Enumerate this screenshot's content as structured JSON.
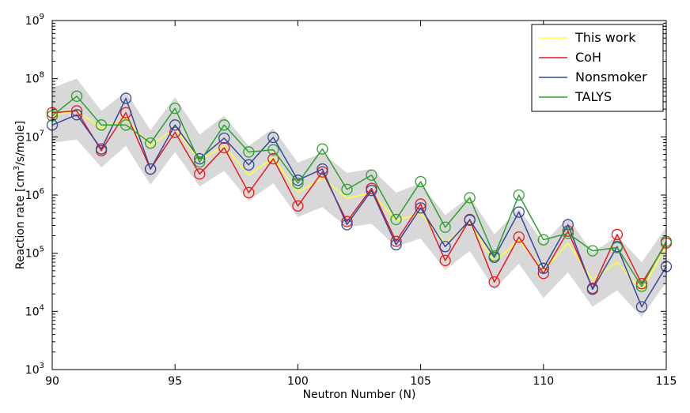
{
  "chart_data": {
    "type": "line",
    "title": "",
    "xlabel": "Neutron Number (N)",
    "ylabel_main": "Reaction rate [cm",
    "ylabel_sup": "3",
    "ylabel_tail": "/s/mole]",
    "xlim": [
      90,
      115
    ],
    "ylim_exp": [
      3,
      9
    ],
    "yscale": "log",
    "x_ticks": [
      90,
      95,
      100,
      105,
      110,
      115
    ],
    "y_tick_base": "10",
    "y_tick_exponents": [
      "3",
      "4",
      "5",
      "6",
      "7",
      "8",
      "9"
    ],
    "x": [
      90,
      91,
      92,
      93,
      94,
      95,
      96,
      97,
      98,
      99,
      100,
      101,
      102,
      103,
      104,
      105,
      106,
      107,
      108,
      109,
      110,
      111,
      112,
      113,
      114,
      115
    ],
    "band": {
      "color": "#d8d8d8",
      "lower": [
        8000000.0,
        9000000.0,
        3000000.0,
        7000000.0,
        1500000.0,
        5500000.0,
        1400000.0,
        2600000.0,
        800000.0,
        1600000.0,
        420000.0,
        620000.0,
        280000.0,
        320000.0,
        130000.0,
        180000.0,
        52000.0,
        110000.0,
        24000.0,
        66000.0,
        17000.0,
        47000.0,
        12000.0,
        23000.0,
        8000.0,
        32000.0
      ],
      "upper": [
        70000000.0,
        100000000.0,
        28000000.0,
        60000000.0,
        13000000.0,
        48000000.0,
        11000000.0,
        23000000.0,
        7000000.0,
        14000000.0,
        3600000.0,
        5300000.0,
        2400000.0,
        2800000.0,
        1100000.0,
        1600000.0,
        450000.0,
        950000.0,
        210000.0,
        580000.0,
        150000.0,
        410000.0,
        100000.0,
        200000.0,
        70000.0,
        280000.0
      ]
    },
    "series": [
      {
        "name": "This work",
        "color": "#ffff33",
        "markers": false,
        "values": [
          24000000.0,
          28000000.0,
          14000000.0,
          21000000.0,
          7000000.0,
          14000000.0,
          4000000.0,
          7000000.0,
          2200000.0,
          4400000.0,
          1100000.0,
          2000000.0,
          880000.0,
          1100000.0,
          370000.0,
          480000.0,
          150000.0,
          330000.0,
          70000.0,
          170000.0,
          50000.0,
          150000.0,
          35000.0,
          70000.0,
          23000.0,
          130000.0
        ]
      },
      {
        "name": "CoH",
        "color": "#e41a1c",
        "markers": true,
        "values": [
          26000000.0,
          28000000.0,
          5800000.0,
          26000000.0,
          2800000.0,
          12000000.0,
          2300000.0,
          6500000.0,
          1100000.0,
          4200000.0,
          650000.0,
          2500000.0,
          350000.0,
          1300000.0,
          160000.0,
          700000.0,
          75000.0,
          380000.0,
          32000.0,
          190000.0,
          45000.0,
          240000.0,
          25000.0,
          210000.0,
          30000.0,
          150000.0
        ]
      },
      {
        "name": "Nonsmoker",
        "color": "#37479a",
        "markers": true,
        "values": [
          16000000.0,
          24000000.0,
          6200000.0,
          46000000.0,
          2800000.0,
          16000000.0,
          4200000.0,
          9500000.0,
          3300000.0,
          9800000.0,
          1800000.0,
          2800000.0,
          310000.0,
          1200000.0,
          140000.0,
          600000.0,
          130000.0,
          370000.0,
          85000.0,
          510000.0,
          55000.0,
          310000.0,
          24000.0,
          130000.0,
          12000.0,
          59000.0
        ]
      },
      {
        "name": "TALYS",
        "color": "#2ca02c",
        "markers": true,
        "values": [
          23000000.0,
          50000000.0,
          16000000.0,
          16000000.0,
          7800000.0,
          31000000.0,
          3700000.0,
          16000000.0,
          5500000.0,
          6000000.0,
          1600000.0,
          6200000.0,
          1250000.0,
          2200000.0,
          380000.0,
          1700000.0,
          280000.0,
          900000.0,
          90000.0,
          1000000.0,
          170000.0,
          220000.0,
          110000.0,
          125000.0,
          27000.0,
          160000.0
        ]
      }
    ],
    "legend_position": "top-right"
  }
}
